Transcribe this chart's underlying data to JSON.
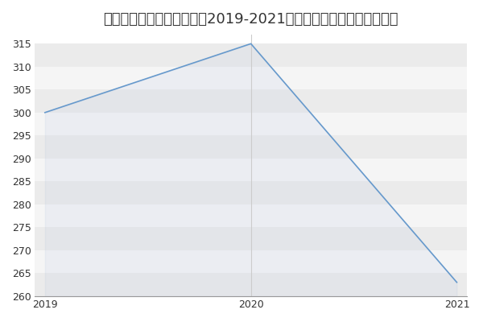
{
  "title": "苏州大学信息与通信工程（2019-2021历年复试）研究生录取分数线",
  "x": [
    2019,
    2020,
    2021
  ],
  "y": [
    300,
    315,
    263
  ],
  "line_color": "#6699cc",
  "fig_bg_color": "#ffffff",
  "plot_bg_color": "#ffffff",
  "band_color_dark": "#ebebeb",
  "band_color_light": "#f5f5f5",
  "ylim": [
    260,
    317
  ],
  "yticks": [
    260,
    265,
    270,
    275,
    280,
    285,
    290,
    295,
    300,
    305,
    310,
    315
  ],
  "xticks": [
    2019,
    2020,
    2021
  ],
  "title_fontsize": 13,
  "tick_fontsize": 9,
  "grid_color": "#cccccc",
  "vline_color": "#cccccc",
  "fill_color": "#aabbdd",
  "fill_alpha": 0.12
}
